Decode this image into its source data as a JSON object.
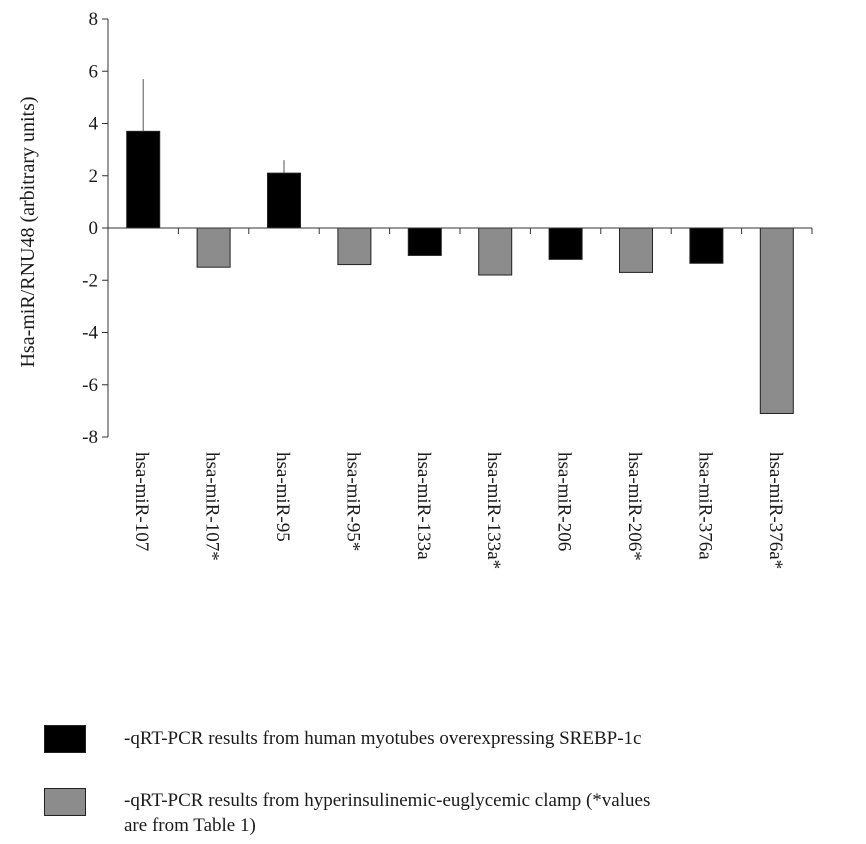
{
  "chart_data": {
    "type": "bar",
    "ylabel": "Hsa-miR/RNU48 (arbitrary units)",
    "ylim": [
      -8,
      8
    ],
    "yticks": [
      8,
      6,
      4,
      2,
      0,
      -2,
      -4,
      -6,
      -8
    ],
    "categories": [
      "hsa-miR-107",
      "hsa-miR-107*",
      "hsa-miR-95",
      "hsa-miR-95*",
      "hsa-miR-133a",
      "hsa-miR-133a*",
      "hsa-miR-206",
      "hsa-miR-206*",
      "hsa-miR-376a",
      "hsa-miR-376a*"
    ],
    "values": [
      3.7,
      -1.5,
      2.1,
      -1.4,
      -1.05,
      -1.8,
      -1.2,
      -1.7,
      -1.35,
      -7.1
    ],
    "error": [
      2.0,
      0,
      0.5,
      0,
      0,
      0,
      0,
      0,
      0,
      0
    ],
    "bar_groups": [
      0,
      1,
      0,
      1,
      0,
      1,
      0,
      1,
      0,
      1
    ],
    "series": [
      {
        "label": "-qRT-PCR results from human myotubes overexpressing SREBP-1c",
        "color": "#000000"
      },
      {
        "label": "-qRT-PCR results from hyperinsulinemic-euglycemic clamp (*values are from Table 1)",
        "color": "#8c8c8c"
      }
    ],
    "grid": false,
    "legend_position": "bottom"
  },
  "legend": {
    "item1_text": "-qRT-PCR results from human myotubes overexpressing SREBP-1c",
    "item2_line1": "-qRT-PCR results from hyperinsulinemic-euglycemic clamp (*values",
    "item2_line2": "are from Table 1)"
  }
}
